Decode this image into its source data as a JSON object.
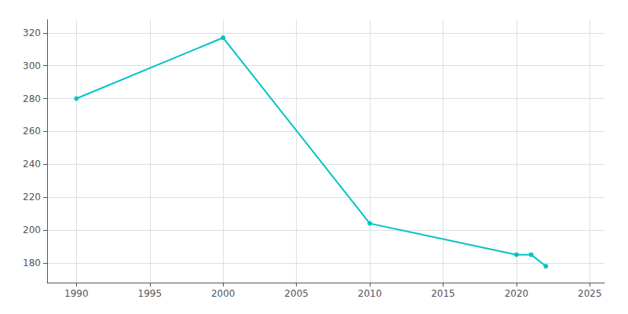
{
  "chart_data": {
    "type": "line",
    "x": [
      1990,
      2000,
      2010,
      2020,
      2021,
      2022
    ],
    "values": [
      280,
      317,
      204,
      185,
      185,
      178
    ],
    "color": "#00C4C4",
    "marker": "circle",
    "xlim": [
      1988,
      2026
    ],
    "ylim": [
      168,
      328
    ],
    "xticks": [
      1990,
      1995,
      2000,
      2005,
      2010,
      2015,
      2020,
      2025
    ],
    "yticks": [
      180,
      200,
      220,
      240,
      260,
      280,
      300,
      320
    ],
    "grid": true
  }
}
